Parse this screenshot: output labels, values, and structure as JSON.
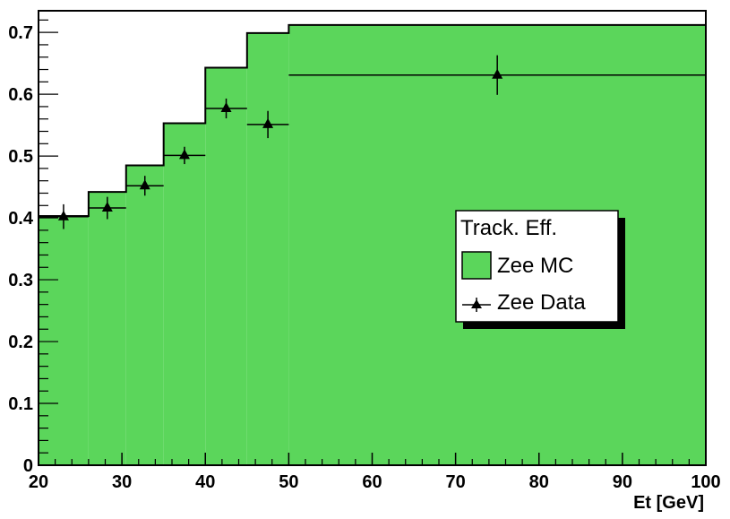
{
  "chart_data": {
    "type": "histogram",
    "xlabel": "Et [GeV]",
    "ylabel": "",
    "xlim": [
      20,
      100
    ],
    "ylim": [
      0,
      0.735
    ],
    "x_major_ticks": [
      20,
      30,
      40,
      50,
      60,
      70,
      80,
      90,
      100
    ],
    "y_major_ticks": [
      0,
      0.1,
      0.2,
      0.3,
      0.4,
      0.5,
      0.6,
      0.7
    ],
    "x_tick_labels": [
      "20",
      "30",
      "40",
      "50",
      "60",
      "70",
      "80",
      "90",
      "100"
    ],
    "y_tick_labels": [
      "0",
      "0.1",
      "0.2",
      "0.3",
      "0.4",
      "0.5",
      "0.6",
      "0.7"
    ],
    "grid": false,
    "legend": {
      "title": "Track. Eff.",
      "position": "center-right",
      "entries": [
        {
          "label": "Zee MC",
          "style": "filled-box"
        },
        {
          "label": "Zee Data",
          "style": "triangle-marker-with-errorbar"
        }
      ]
    },
    "colors": {
      "mc_fill": "#5bd65b",
      "data_marker": "#000000",
      "line": "#000000"
    },
    "series": [
      {
        "name": "Zee MC",
        "type": "histogram",
        "bin_edges": [
          20,
          26,
          30.5,
          35,
          40,
          45,
          50,
          100
        ],
        "values": [
          0.403,
          0.442,
          0.485,
          0.553,
          0.643,
          0.699,
          0.712
        ]
      },
      {
        "name": "Zee Data",
        "type": "points",
        "x": [
          23,
          28.25,
          32.75,
          37.5,
          42.5,
          47.5,
          75
        ],
        "x_err": [
          3,
          2.25,
          2.25,
          2.5,
          2.5,
          2.5,
          25
        ],
        "y": [
          0.402,
          0.416,
          0.452,
          0.501,
          0.577,
          0.551,
          0.631
        ],
        "y_err": [
          0.02,
          0.018,
          0.016,
          0.014,
          0.016,
          0.022,
          0.032
        ]
      }
    ]
  }
}
